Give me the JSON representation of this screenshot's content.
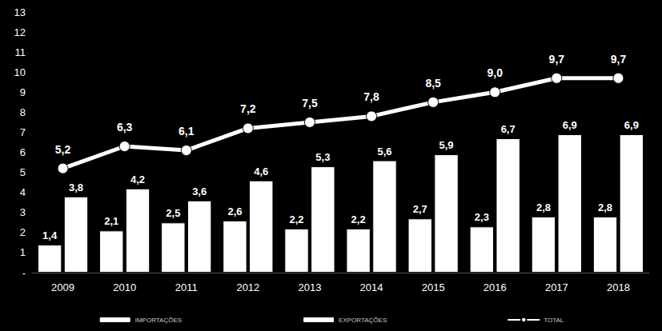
{
  "chart_data": {
    "type": "bar",
    "categories": [
      "2009",
      "2010",
      "2011",
      "2012",
      "2013",
      "2014",
      "2015",
      "2016",
      "2017",
      "2018"
    ],
    "series": [
      {
        "name": "IMPORTAÇÕES",
        "type": "bar",
        "color": "#ffffff",
        "values": [
          1.4,
          2.1,
          2.5,
          2.6,
          2.2,
          2.2,
          2.7,
          2.3,
          2.8,
          2.8
        ],
        "value_labels": [
          "1,4",
          "2,1",
          "2,5",
          "2,6",
          "2,2",
          "2,2",
          "2,7",
          "2,3",
          "2,8",
          "2,8"
        ]
      },
      {
        "name": "EXPORTAÇÕES",
        "type": "bar",
        "color": "#ffffff",
        "values": [
          3.8,
          4.2,
          3.6,
          4.6,
          5.3,
          5.6,
          5.9,
          6.7,
          6.9,
          6.9
        ],
        "value_labels": [
          "3,8",
          "4,2",
          "3,6",
          "4,6",
          "5,3",
          "5,6",
          "5,9",
          "6,7",
          "6,9",
          "6,9"
        ]
      },
      {
        "name": "TOTAL",
        "type": "line",
        "color": "#ffffff",
        "marker": "circle",
        "values": [
          5.2,
          6.3,
          6.1,
          7.2,
          7.5,
          7.8,
          8.5,
          9.0,
          9.7,
          9.7
        ],
        "value_labels": [
          "5,2",
          "6,3",
          "6,1",
          "7,2",
          "7,5",
          "7,8",
          "8,5",
          "9,0",
          "9,7",
          "9,7"
        ]
      }
    ],
    "ylim": [
      0,
      13
    ],
    "yticks": [
      {
        "value": 0,
        "label": "-"
      },
      1,
      2,
      3,
      4,
      5,
      6,
      7,
      8,
      9,
      10,
      11,
      12,
      13
    ],
    "grid": false,
    "legend": "bottom",
    "data_labels": true
  }
}
